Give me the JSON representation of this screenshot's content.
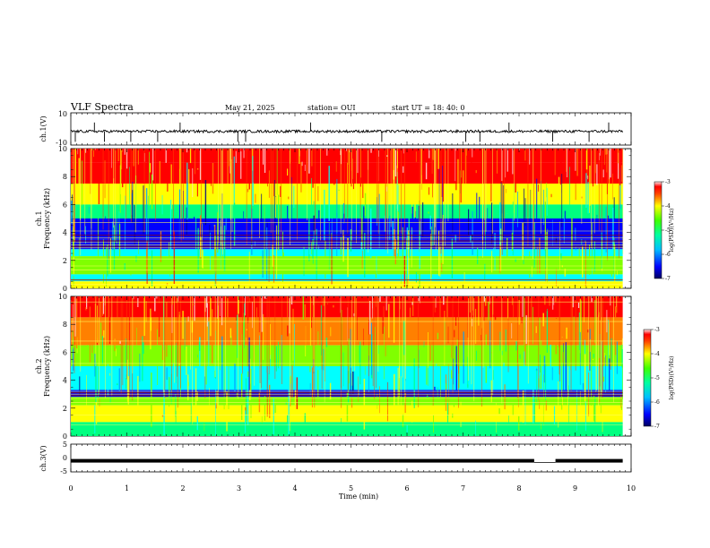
{
  "header": {
    "title": "VLF Spectra",
    "date": "May 21, 2025",
    "station": "station= OUI",
    "start": "start  UT =   18: 40: 0"
  },
  "colors": {
    "spectrogram_palette": [
      "#00008b",
      "#0000ff",
      "#00a0ff",
      "#00ffff",
      "#00ff80",
      "#80ff00",
      "#ffff00",
      "#ff8000",
      "#ff0000",
      "#ffe0e0"
    ]
  },
  "chart_data": [
    {
      "type": "line",
      "name": "ch1-waveform",
      "ylabel": "ch.1(V)",
      "ylim": [
        -10,
        10
      ],
      "yticks": [
        "10",
        "-10"
      ],
      "x_range_min": [
        0,
        9.85
      ],
      "baseline_v": -1.5,
      "approx_spike_times_min": [
        0.08,
        0.42,
        0.6,
        1.07,
        1.55,
        1.95,
        2.98,
        3.12,
        4.28,
        5.55,
        7.05,
        7.3,
        7.82,
        8.6,
        9.25,
        9.6
      ]
    },
    {
      "type": "heatmap",
      "name": "ch1-spectrogram",
      "ylabel": "ch.1 Frequency (kHz)",
      "ylim": [
        0,
        10
      ],
      "yticks": [
        "0",
        "2",
        "4",
        "6",
        "8",
        "10"
      ],
      "x_range_min": [
        0,
        9.85
      ],
      "colorbar": {
        "label": "log(PSD)(V^2/Hz)",
        "range": [
          -7,
          -3
        ],
        "ticks": [
          "-3",
          "-4",
          "-5",
          "-6",
          "-7"
        ]
      },
      "bands_khz_log_psd": [
        {
          "from": 9.0,
          "to": 10.0,
          "level": -3.6
        },
        {
          "from": 7.5,
          "to": 9.0,
          "level": -3.8
        },
        {
          "from": 6.0,
          "to": 7.5,
          "level": -4.3
        },
        {
          "from": 5.0,
          "to": 6.0,
          "level": -5.3
        },
        {
          "from": 3.5,
          "to": 5.0,
          "level": -6.6
        },
        {
          "from": 2.8,
          "to": 3.5,
          "level": -6.2
        },
        {
          "from": 2.3,
          "to": 2.8,
          "level": -5.6
        },
        {
          "from": 1.0,
          "to": 2.3,
          "level": -5.0
        },
        {
          "from": 0.5,
          "to": 1.0,
          "level": -5.4
        },
        {
          "from": 0.0,
          "to": 0.5,
          "level": -4.6
        }
      ],
      "lines_khz": [
        0.3,
        0.6,
        1.3,
        1.6,
        2.1,
        2.9,
        3.1,
        3.3,
        3.6,
        4.1,
        4.7
      ],
      "dark_lines_khz": [
        3.0,
        3.4,
        3.8,
        0.6
      ]
    },
    {
      "type": "heatmap",
      "name": "ch2-spectrogram",
      "ylabel": "ch.2 Frequency (kHz)",
      "ylim": [
        0,
        10
      ],
      "yticks": [
        "0",
        "2",
        "4",
        "6",
        "8",
        "10"
      ],
      "x_range_min": [
        0,
        9.85
      ],
      "colorbar": {
        "label": "log(PSD)(V^2/Hz)",
        "range": [
          -7,
          -3
        ],
        "ticks": [
          "-3",
          "-4",
          "-5",
          "-6",
          "-7"
        ]
      },
      "bands_khz_log_psd": [
        {
          "from": 8.5,
          "to": 10.0,
          "level": -3.8
        },
        {
          "from": 6.5,
          "to": 8.5,
          "level": -4.1
        },
        {
          "from": 5.0,
          "to": 6.5,
          "level": -4.8
        },
        {
          "from": 3.3,
          "to": 5.0,
          "level": -5.6
        },
        {
          "from": 2.8,
          "to": 3.3,
          "level": -6.6
        },
        {
          "from": 2.2,
          "to": 2.8,
          "level": -5.0
        },
        {
          "from": 1.0,
          "to": 2.2,
          "level": -4.6
        },
        {
          "from": 0.0,
          "to": 1.0,
          "level": -5.2
        }
      ],
      "lines_khz": [
        0.8,
        1.5,
        2.4,
        2.7,
        3.0,
        3.2,
        5.2,
        6.8,
        8.2,
        9.6
      ],
      "dark_lines_khz": [
        2.9,
        3.1
      ]
    },
    {
      "type": "line",
      "name": "ch3-waveform",
      "ylabel": "ch.3(V)",
      "ylim": [
        -5,
        5
      ],
      "yticks": [
        "5",
        "0",
        "-5"
      ],
      "x_range_min": [
        0,
        9.85
      ],
      "level_v": -1.0,
      "gap_min": [
        8.27,
        8.65
      ]
    },
    {
      "type": "axis",
      "name": "time-axis",
      "xlabel": "Time  (min)",
      "xlim": [
        0,
        10
      ],
      "xticks": [
        "0",
        "1",
        "2",
        "3",
        "4",
        "5",
        "6",
        "7",
        "8",
        "9",
        "10"
      ]
    }
  ]
}
